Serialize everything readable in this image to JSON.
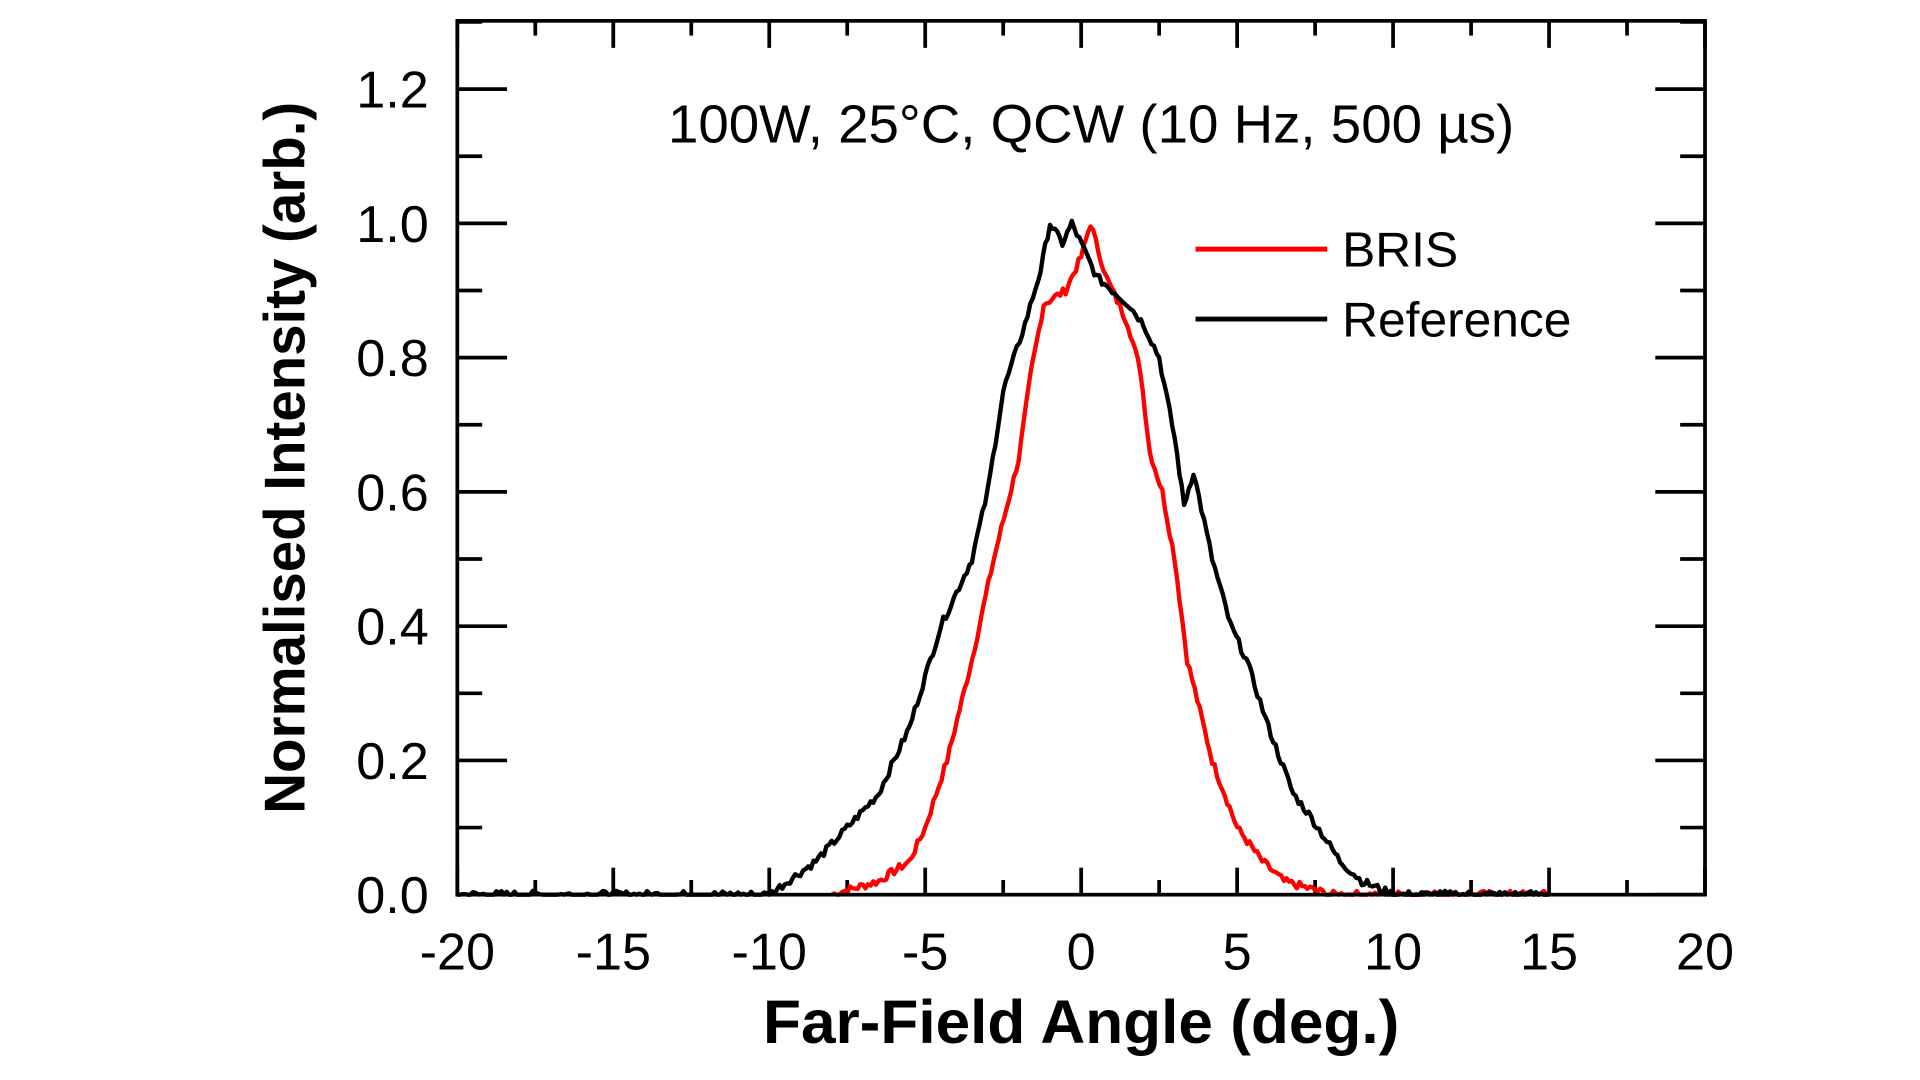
{
  "chart_data": {
    "type": "line",
    "annotation": "100W, 25°C, QCW (10 Hz, 500 µs)",
    "xlabel": "Far-Field Angle (deg.)",
    "ylabel": "Normalised Intensity (arb.)",
    "xlim": [
      -20,
      20
    ],
    "ylim": [
      0,
      1.3
    ],
    "xticks": [
      "-20",
      "-15",
      "-10",
      "-5",
      "0",
      "5",
      "10",
      "15",
      "20"
    ],
    "yticks": [
      "0.0",
      "0.2",
      "0.4",
      "0.6",
      "0.8",
      "1.0",
      "1.2"
    ],
    "grid": false,
    "legend_position": "top-right",
    "series": [
      {
        "name": "BRIS",
        "color": "#ff0000",
        "x": [
          -8,
          -6.5,
          -5.5,
          -5,
          -4.3,
          -3.5,
          -2.8,
          -2,
          -1.6,
          -1.2,
          -0.5,
          0,
          0.3,
          0.8,
          1.5,
          1.9,
          2.2,
          2.6,
          3,
          3.4,
          4.2,
          5,
          5.8,
          6.5,
          8,
          15
        ],
        "y": [
          0,
          0.02,
          0.05,
          0.1,
          0.2,
          0.35,
          0.5,
          0.65,
          0.78,
          0.88,
          0.9,
          0.95,
          1.0,
          0.92,
          0.85,
          0.78,
          0.66,
          0.6,
          0.5,
          0.35,
          0.2,
          0.1,
          0.05,
          0.02,
          0,
          0
        ]
      },
      {
        "name": "Reference",
        "color": "#000000",
        "x": [
          -20,
          -10,
          -8.5,
          -7.5,
          -6.5,
          -5.5,
          -4.5,
          -3.5,
          -3,
          -2.5,
          -1.8,
          -1.3,
          -1.0,
          -0.6,
          -0.3,
          0.5,
          1.0,
          1.5,
          2,
          2.5,
          3,
          3.3,
          3.6,
          4.2,
          4.8,
          5.3,
          6,
          6.8,
          7.3,
          8.3,
          9,
          10,
          15
        ],
        "y": [
          0,
          0,
          0.05,
          0.1,
          0.15,
          0.25,
          0.4,
          0.5,
          0.6,
          0.75,
          0.85,
          0.93,
          1.0,
          0.97,
          1.0,
          0.92,
          0.9,
          0.88,
          0.85,
          0.8,
          0.68,
          0.58,
          0.63,
          0.5,
          0.4,
          0.35,
          0.25,
          0.15,
          0.12,
          0.05,
          0.02,
          0,
          0
        ]
      }
    ]
  }
}
